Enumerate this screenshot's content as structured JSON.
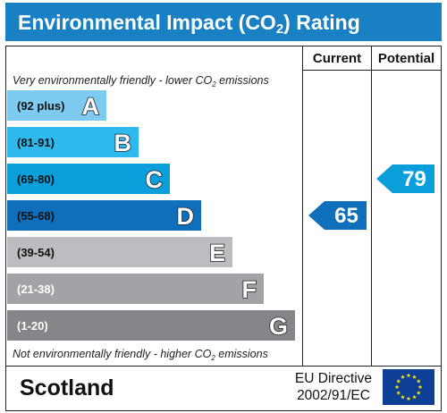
{
  "title": {
    "main": "Environmental Impact (CO",
    "sub": "2",
    "tail": ") Rating"
  },
  "columns": {
    "current": "Current",
    "potential": "Potential"
  },
  "captions": {
    "top": {
      "main": "Very environmentally friendly - lower CO",
      "sub": "2",
      "tail": " emissions"
    },
    "bottom": {
      "main": "Not environmentally friendly - higher CO",
      "sub": "2",
      "tail": " emissions"
    }
  },
  "chart_data": {
    "type": "bar",
    "title": "Environmental Impact (CO2) Rating",
    "bands": [
      {
        "letter": "A",
        "range": "(92 plus)",
        "color": "#7ecbf1",
        "range_color": "#111111"
      },
      {
        "letter": "B",
        "range": "(81-91)",
        "color": "#2db9ee",
        "range_color": "#111111"
      },
      {
        "letter": "C",
        "range": "(69-80)",
        "color": "#0a9edb",
        "range_color": "#111111"
      },
      {
        "letter": "D",
        "range": "(55-68)",
        "color": "#0f6fba",
        "range_color": "#111111"
      },
      {
        "letter": "E",
        "range": "(39-54)",
        "color": "#bcbdc0",
        "range_color": "#111111"
      },
      {
        "letter": "F",
        "range": "(21-38)",
        "color": "#a2a3a6",
        "range_color": "#ffffff"
      },
      {
        "letter": "G",
        "range": "(1-20)",
        "color": "#858689",
        "range_color": "#ffffff"
      }
    ],
    "current": {
      "value": 65,
      "band": "D",
      "label": "65",
      "color": "#0f6fba"
    },
    "potential": {
      "value": 79,
      "band": "C",
      "label": "79",
      "color": "#0a9edb"
    }
  },
  "footer": {
    "region": "Scotland",
    "directive_line1": "EU Directive",
    "directive_line2": "2002/91/EC",
    "flag_icon": "eu-flag-icon",
    "flag_color": "#0d3f96",
    "star_color": "#ffe400"
  }
}
